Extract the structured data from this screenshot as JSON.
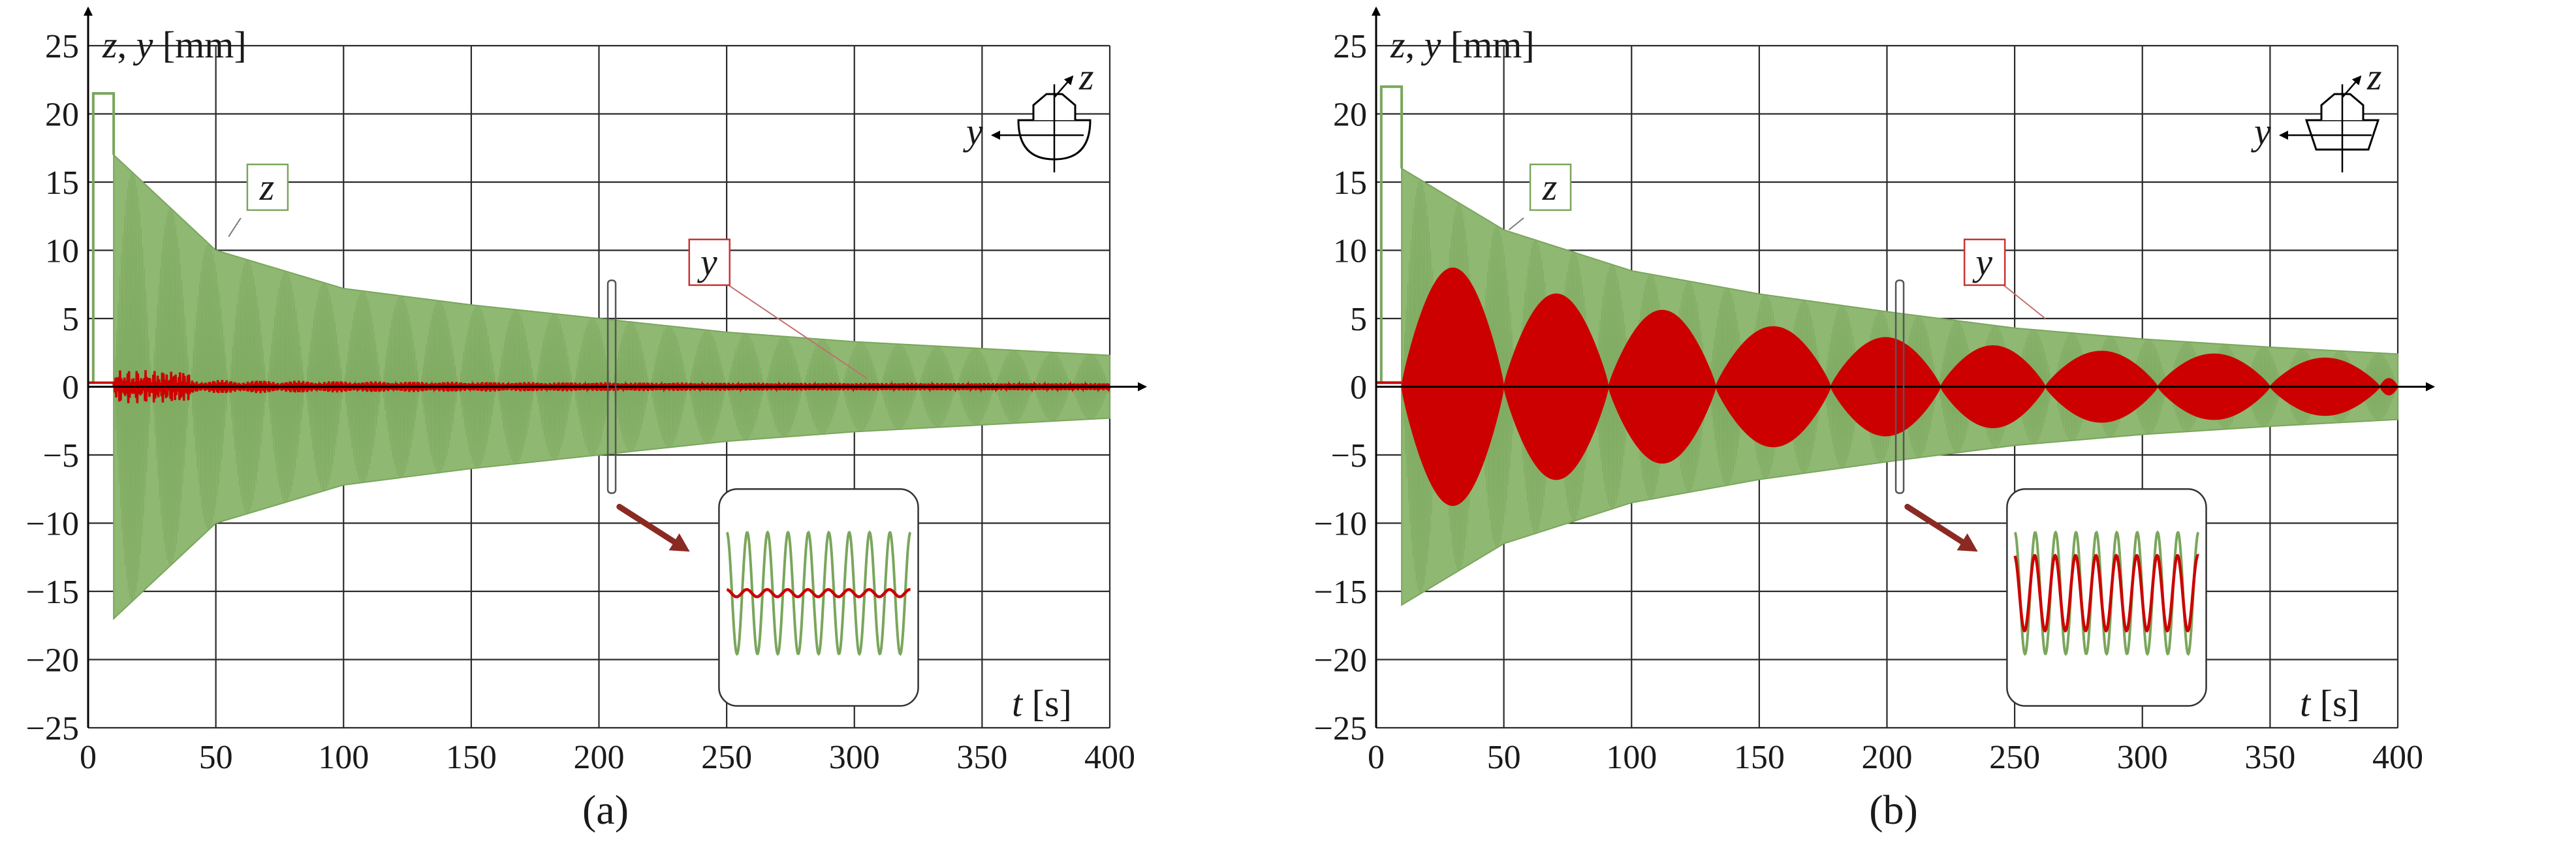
{
  "colors": {
    "z": "#7aa65c",
    "z_fill": "#8fb872",
    "y": "#cc0000",
    "grid": "#2a2a2a",
    "axis": "#000000",
    "arrow": "#8b2a22",
    "inset_border": "#333333"
  },
  "icons": [
    "cross-section-icon",
    "zoom-arrow-icon"
  ],
  "chart_data": [
    {
      "type": "line",
      "panel_label": "a",
      "panel_label_text": "(a)",
      "y_axis_title": {
        "var1": "z",
        "sep": ", ",
        "var2": "y",
        "unit": " [mm]"
      },
      "x_axis_title": {
        "var": "t",
        "unit": " [s]"
      },
      "xlim": [
        0,
        400
      ],
      "ylim": [
        -25,
        25
      ],
      "x_ticks": [
        "0",
        "50",
        "100",
        "150",
        "200",
        "250",
        "300",
        "350",
        "400"
      ],
      "y_ticks": [
        "25",
        "20",
        "15",
        "10",
        "5",
        "0",
        "−5",
        "−10",
        "−15",
        "−20",
        "−25"
      ],
      "grid": true,
      "cross_section_axes": {
        "horizontal": "y",
        "vertical": "z"
      },
      "series": [
        {
          "name": "z",
          "label": "z",
          "description": "decaying oscillation envelope",
          "initial_offset": 21.5,
          "release_time": 10,
          "envelope_t": [
            10,
            50,
            100,
            150,
            200,
            250,
            300,
            350,
            400
          ],
          "envelope_amp": [
            17,
            10,
            7.2,
            6.0,
            5.0,
            4.0,
            3.3,
            2.8,
            2.3
          ]
        },
        {
          "name": "y",
          "label": "y",
          "description": "small sway around zero",
          "peak_amplitude": 1.2
        }
      ],
      "inset": {
        "zoom_time": 205,
        "z_cycles": 9,
        "y_relative_amplitude": 0.06
      }
    },
    {
      "type": "line",
      "panel_label": "b",
      "panel_label_text": "(b)",
      "y_axis_title": {
        "var1": "z",
        "sep": ", ",
        "var2": "y",
        "unit": " [mm]"
      },
      "x_axis_title": {
        "var": "t",
        "unit": " [s]"
      },
      "xlim": [
        0,
        400
      ],
      "ylim": [
        -25,
        25
      ],
      "x_ticks": [
        "0",
        "50",
        "100",
        "150",
        "200",
        "250",
        "300",
        "350",
        "400"
      ],
      "y_ticks": [
        "25",
        "20",
        "15",
        "10",
        "5",
        "0",
        "−5",
        "−10",
        "−15",
        "−20",
        "−25"
      ],
      "grid": true,
      "cross_section_axes": {
        "horizontal": "y",
        "vertical": "z"
      },
      "series": [
        {
          "name": "z",
          "label": "z",
          "description": "decaying oscillation envelope",
          "initial_offset": 22,
          "release_time": 10,
          "envelope_t": [
            10,
            50,
            100,
            150,
            200,
            250,
            300,
            350,
            400
          ],
          "envelope_amp": [
            16,
            11.5,
            8.5,
            6.8,
            5.5,
            4.3,
            3.5,
            2.9,
            2.4
          ]
        },
        {
          "name": "y",
          "label": "y",
          "description": "beating sway, lobes between nodes",
          "node_times": [
            10,
            50,
            91,
            133,
            178,
            221,
            262,
            306,
            350,
            393,
            400
          ],
          "lobe_peaks": [
            8.7,
            6.8,
            5.6,
            4.4,
            3.6,
            3.0,
            2.6,
            2.4,
            2.1,
            0.6
          ]
        }
      ],
      "inset": {
        "zoom_time": 205,
        "z_cycles": 9,
        "y_relative_amplitude": 0.62
      }
    }
  ]
}
